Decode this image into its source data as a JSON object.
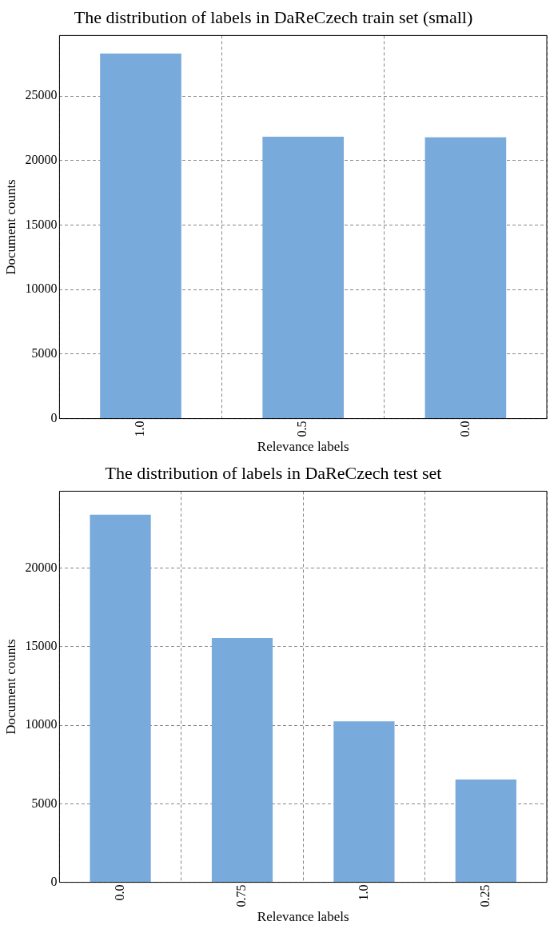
{
  "chart_data": [
    {
      "type": "bar",
      "title": "The distribution of labels in DaReCzech train set (small)",
      "xlabel": "Relevance labels",
      "ylabel": "Document counts",
      "categories": [
        "1.0",
        "0.5",
        "0.0"
      ],
      "values": [
        28300,
        21850,
        21800
      ],
      "color": "#78aadc",
      "ylim": [
        0,
        29700
      ],
      "yticks": [
        0,
        5000,
        10000,
        15000,
        20000,
        25000
      ],
      "grid": true
    },
    {
      "type": "bar",
      "title": "The distribution of labels in DaReCzech test set",
      "xlabel": "Relevance labels",
      "ylabel": "Document counts",
      "categories": [
        "0.0",
        "0.75",
        "1.0",
        "0.25"
      ],
      "values": [
        23400,
        15550,
        10250,
        6550
      ],
      "color": "#78aadc",
      "ylim": [
        0,
        24900
      ],
      "yticks": [
        0,
        5000,
        10000,
        15000,
        20000
      ],
      "grid": true
    }
  ]
}
